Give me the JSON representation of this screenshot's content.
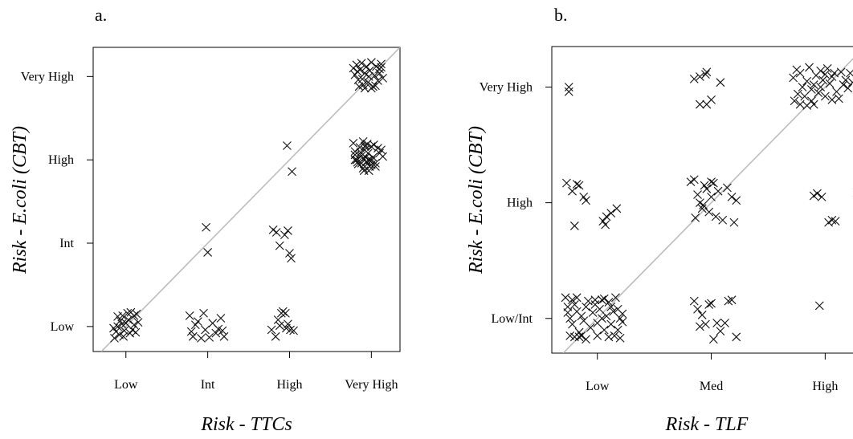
{
  "chart_data": [
    {
      "type": "scatter",
      "panel_label": "a.",
      "xlabel_prefix": "Risk - ",
      "xlabel_var": "TTCs",
      "ylabel_prefix": "Risk - ",
      "ylabel_var": "E.coli",
      "ylabel_suffix": " (CBT)",
      "x_categories": [
        "Low",
        "Int",
        "High",
        "Very High"
      ],
      "y_categories": [
        "Low",
        "Int",
        "High",
        "Very High"
      ],
      "xlim": [
        0.6,
        4.35
      ],
      "ylim": [
        0.7,
        4.35
      ],
      "reference_line": "y = x",
      "marker": "x",
      "points": [
        [
          0.85,
          0.98
        ],
        [
          0.88,
          0.94
        ],
        [
          0.9,
          1.0
        ],
        [
          0.92,
          0.9
        ],
        [
          0.86,
          0.86
        ],
        [
          0.95,
          1.03
        ],
        [
          0.98,
          0.95
        ],
        [
          1.0,
          1.04
        ],
        [
          0.9,
          1.12
        ],
        [
          1.02,
          1.16
        ],
        [
          1.06,
          1.17
        ],
        [
          1.1,
          1.13
        ],
        [
          1.13,
          1.15
        ],
        [
          1.05,
          0.92
        ],
        [
          1.08,
          0.96
        ],
        [
          1.12,
          0.93
        ],
        [
          0.97,
          0.88
        ],
        [
          1.15,
          1.05
        ],
        [
          0.93,
          1.07
        ],
        [
          1.03,
          1.08
        ],
        [
          1.1,
          1.02
        ],
        [
          0.96,
          1.13
        ],
        [
          1.78,
          1.13
        ],
        [
          1.82,
          0.88
        ],
        [
          1.85,
          1.02
        ],
        [
          1.8,
          0.94
        ],
        [
          1.92,
          0.86
        ],
        [
          1.95,
          1.16
        ],
        [
          1.97,
          0.96
        ],
        [
          2.02,
          0.87
        ],
        [
          2.06,
          1.04
        ],
        [
          2.1,
          0.92
        ],
        [
          2.13,
          0.97
        ],
        [
          2.16,
          1.1
        ],
        [
          2.18,
          0.95
        ],
        [
          2.2,
          0.88
        ],
        [
          1.88,
          1.06
        ],
        [
          2.78,
          0.96
        ],
        [
          2.83,
          0.88
        ],
        [
          2.86,
          1.08
        ],
        [
          2.9,
          1.16
        ],
        [
          2.92,
          1.18
        ],
        [
          2.95,
          1.16
        ],
        [
          2.96,
          0.98
        ],
        [
          2.98,
          1.03
        ],
        [
          3.01,
          0.96
        ],
        [
          3.05,
          0.95
        ],
        [
          2.88,
          1.01
        ],
        [
          2.8,
          2.16
        ],
        [
          2.84,
          2.13
        ],
        [
          2.88,
          1.97
        ],
        [
          2.94,
          2.1
        ],
        [
          2.98,
          2.15
        ],
        [
          3.0,
          1.88
        ],
        [
          3.02,
          1.82
        ],
        [
          2.97,
          3.17
        ],
        [
          3.03,
          2.86
        ],
        [
          1.98,
          2.19
        ],
        [
          2.0,
          1.89
        ],
        [
          3.8,
          3.0
        ],
        [
          3.83,
          2.97
        ],
        [
          3.88,
          2.96
        ],
        [
          3.9,
          3.01
        ],
        [
          3.94,
          2.97
        ],
        [
          3.97,
          3.0
        ],
        [
          4.0,
          2.99
        ],
        [
          4.05,
          2.92
        ],
        [
          3.92,
          3.16
        ],
        [
          3.93,
          3.17
        ],
        [
          3.78,
          3.2
        ],
        [
          3.8,
          3.1
        ],
        [
          3.82,
          3.0
        ],
        [
          3.84,
          2.95
        ],
        [
          3.86,
          3.15
        ],
        [
          3.88,
          3.05
        ],
        [
          3.9,
          2.9
        ],
        [
          3.92,
          3.12
        ],
        [
          3.94,
          2.98
        ],
        [
          3.96,
          3.08
        ],
        [
          3.98,
          2.92
        ],
        [
          4.0,
          3.16
        ],
        [
          4.02,
          3.03
        ],
        [
          4.05,
          2.96
        ],
        [
          4.08,
          3.14
        ],
        [
          4.1,
          3.08
        ],
        [
          4.12,
          3.12
        ],
        [
          4.14,
          3.04
        ],
        [
          3.9,
          3.22
        ],
        [
          3.95,
          3.19
        ],
        [
          4.03,
          3.18
        ],
        [
          3.87,
          3.09
        ],
        [
          3.91,
          2.87
        ],
        [
          3.93,
          3.03
        ],
        [
          3.97,
          2.87
        ],
        [
          4.0,
          2.94
        ],
        [
          3.8,
          3.06
        ],
        [
          3.78,
          4.1
        ],
        [
          3.8,
          4.02
        ],
        [
          3.82,
          4.14
        ],
        [
          3.84,
          3.96
        ],
        [
          3.86,
          4.08
        ],
        [
          3.88,
          4.16
        ],
        [
          3.9,
          3.9
        ],
        [
          3.92,
          4.04
        ],
        [
          3.94,
          4.12
        ],
        [
          3.96,
          3.93
        ],
        [
          3.98,
          4.07
        ],
        [
          4.0,
          4.17
        ],
        [
          4.02,
          3.88
        ],
        [
          4.04,
          4.01
        ],
        [
          4.06,
          4.12
        ],
        [
          4.08,
          3.95
        ],
        [
          4.1,
          4.09
        ],
        [
          4.12,
          4.15
        ],
        [
          4.14,
          3.98
        ],
        [
          3.85,
          3.88
        ],
        [
          3.92,
          3.86
        ],
        [
          4.0,
          3.86
        ],
        [
          4.05,
          3.89
        ],
        [
          3.97,
          4.0
        ],
        [
          4.1,
          4.04
        ],
        [
          3.83,
          4.06
        ],
        [
          4.12,
          4.11
        ],
        [
          3.89,
          3.97
        ]
      ]
    },
    {
      "type": "scatter",
      "panel_label": "b.",
      "xlabel_prefix": "Risk - ",
      "xlabel_var": "TLF",
      "ylabel_prefix": "Risk - ",
      "ylabel_var": "E.coli",
      "ylabel_suffix": " (CBT)",
      "x_categories": [
        "Low",
        "Med",
        "High"
      ],
      "y_categories": [
        "Low/Int",
        "High",
        "Very High"
      ],
      "xlim": [
        0.6,
        3.35
      ],
      "ylim": [
        0.7,
        3.35
      ],
      "reference_line": "y = x",
      "marker": "x",
      "points": [
        [
          0.75,
          3.0
        ],
        [
          0.75,
          2.96
        ],
        [
          0.73,
          2.17
        ],
        [
          0.78,
          2.1
        ],
        [
          0.82,
          2.16
        ],
        [
          0.84,
          2.15
        ],
        [
          0.88,
          2.05
        ],
        [
          0.9,
          2.02
        ],
        [
          0.8,
          1.8
        ],
        [
          1.05,
          1.84
        ],
        [
          1.08,
          1.88
        ],
        [
          1.12,
          1.91
        ],
        [
          1.17,
          1.95
        ],
        [
          1.07,
          1.81
        ],
        [
          0.72,
          1.18
        ],
        [
          0.74,
          1.05
        ],
        [
          0.76,
          1.0
        ],
        [
          0.78,
          0.95
        ],
        [
          0.8,
          1.12
        ],
        [
          0.82,
          1.18
        ],
        [
          0.84,
          0.88
        ],
        [
          0.86,
          1.02
        ],
        [
          0.88,
          0.98
        ],
        [
          0.9,
          1.1
        ],
        [
          0.92,
          1.15
        ],
        [
          0.94,
          0.92
        ],
        [
          0.96,
          1.05
        ],
        [
          0.98,
          1.12
        ],
        [
          1.0,
          0.96
        ],
        [
          1.02,
          1.08
        ],
        [
          1.04,
          1.16
        ],
        [
          1.06,
          0.9
        ],
        [
          1.08,
          1.02
        ],
        [
          1.1,
          1.14
        ],
        [
          1.12,
          0.95
        ],
        [
          1.14,
          1.06
        ],
        [
          1.16,
          1.18
        ],
        [
          1.18,
          0.9
        ],
        [
          1.2,
          1.0
        ],
        [
          1.22,
          1.04
        ],
        [
          0.76,
          0.85
        ],
        [
          0.8,
          0.84
        ],
        [
          0.84,
          0.84
        ],
        [
          0.9,
          0.82
        ],
        [
          1.0,
          0.85
        ],
        [
          1.1,
          0.84
        ],
        [
          1.15,
          0.85
        ],
        [
          1.2,
          0.83
        ],
        [
          0.74,
          1.1
        ],
        [
          0.82,
          1.06
        ],
        [
          1.06,
          1.17
        ],
        [
          1.22,
          0.97
        ],
        [
          0.78,
          1.16
        ],
        [
          0.98,
          1.16
        ],
        [
          1.12,
          1.1
        ],
        [
          0.86,
          0.85
        ],
        [
          1.04,
          1.0
        ],
        [
          1.18,
          1.08
        ],
        [
          1.85,
          3.07
        ],
        [
          1.9,
          3.09
        ],
        [
          1.95,
          3.11
        ],
        [
          1.96,
          3.13
        ],
        [
          2.08,
          3.04
        ],
        [
          1.9,
          2.85
        ],
        [
          1.96,
          2.85
        ],
        [
          2.0,
          2.89
        ],
        [
          1.82,
          2.18
        ],
        [
          1.85,
          2.2
        ],
        [
          1.88,
          2.07
        ],
        [
          1.9,
          2.0
        ],
        [
          1.92,
          1.95
        ],
        [
          1.94,
          2.15
        ],
        [
          1.96,
          2.12
        ],
        [
          1.98,
          1.92
        ],
        [
          2.0,
          2.05
        ],
        [
          2.02,
          2.17
        ],
        [
          2.04,
          1.88
        ],
        [
          2.06,
          2.1
        ],
        [
          2.1,
          1.85
        ],
        [
          2.14,
          2.13
        ],
        [
          2.18,
          2.05
        ],
        [
          2.22,
          2.02
        ],
        [
          2.2,
          1.83
        ],
        [
          2.0,
          2.18
        ],
        [
          1.93,
          1.98
        ],
        [
          1.86,
          1.87
        ],
        [
          1.85,
          1.15
        ],
        [
          1.88,
          1.08
        ],
        [
          1.92,
          1.03
        ],
        [
          1.95,
          0.95
        ],
        [
          1.98,
          1.12
        ],
        [
          2.0,
          1.13
        ],
        [
          2.02,
          0.82
        ],
        [
          2.05,
          0.96
        ],
        [
          2.08,
          0.89
        ],
        [
          2.12,
          0.96
        ],
        [
          2.15,
          1.15
        ],
        [
          2.18,
          1.16
        ],
        [
          2.22,
          0.84
        ],
        [
          1.9,
          0.93
        ],
        [
          2.72,
          3.08
        ],
        [
          2.75,
          3.15
        ],
        [
          2.78,
          3.12
        ],
        [
          2.8,
          3.0
        ],
        [
          2.82,
          2.92
        ],
        [
          2.84,
          3.05
        ],
        [
          2.86,
          3.17
        ],
        [
          2.88,
          2.88
        ],
        [
          2.9,
          3.02
        ],
        [
          2.92,
          3.1
        ],
        [
          2.94,
          2.95
        ],
        [
          2.96,
          3.14
        ],
        [
          2.98,
          3.06
        ],
        [
          3.0,
          2.92
        ],
        [
          3.02,
          3.16
        ],
        [
          3.04,
          3.03
        ],
        [
          3.06,
          3.09
        ],
        [
          3.1,
          2.96
        ],
        [
          3.14,
          3.13
        ],
        [
          3.18,
          3.06
        ],
        [
          3.2,
          2.99
        ],
        [
          3.22,
          3.12
        ],
        [
          2.73,
          2.88
        ],
        [
          2.78,
          2.85
        ],
        [
          2.84,
          2.84
        ],
        [
          2.9,
          2.85
        ],
        [
          2.96,
          3.0
        ],
        [
          3.08,
          3.12
        ],
        [
          3.12,
          2.9
        ],
        [
          3.16,
          3.02
        ],
        [
          3.24,
          3.04
        ],
        [
          2.76,
          2.94
        ],
        [
          2.88,
          2.98
        ],
        [
          3.0,
          3.11
        ],
        [
          3.06,
          2.89
        ],
        [
          2.9,
          2.06
        ],
        [
          2.93,
          2.08
        ],
        [
          2.97,
          2.05
        ],
        [
          3.03,
          1.83
        ],
        [
          3.06,
          1.85
        ],
        [
          3.09,
          1.84
        ],
        [
          3.28,
          2.09
        ],
        [
          2.95,
          1.11
        ]
      ]
    }
  ]
}
